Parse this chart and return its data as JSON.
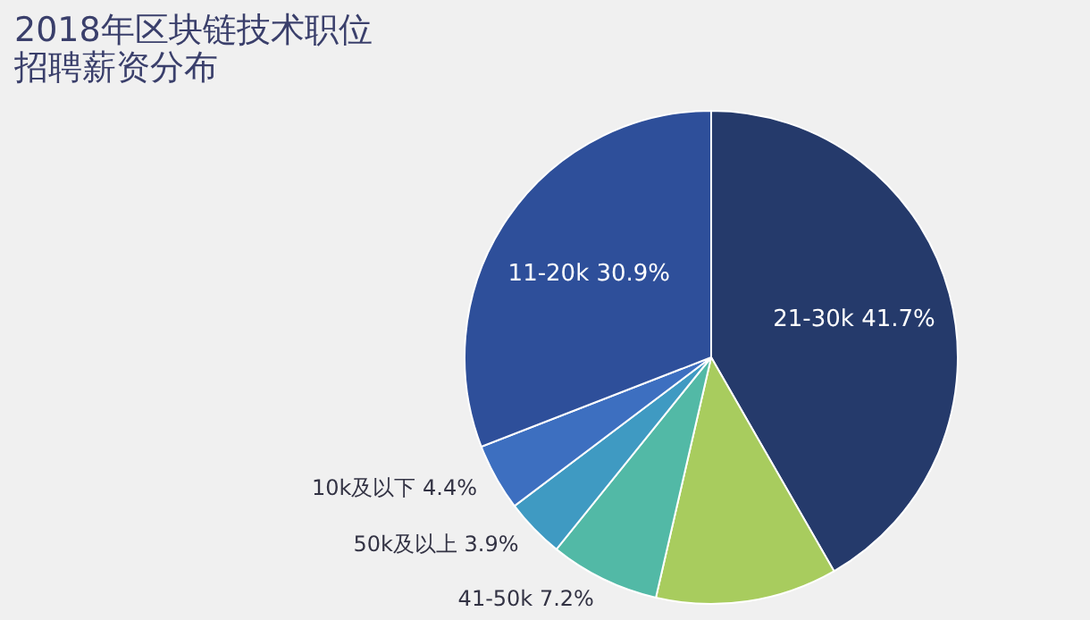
{
  "chart_data": {
    "type": "pie",
    "title": [
      "2018年区块链技术职位",
      "招聘薪资分布"
    ],
    "categories": [
      "21-30k",
      null,
      "41-50k",
      "50k及以上",
      "10k及以下",
      "11-20k"
    ],
    "values": [
      41.7,
      11.9,
      7.2,
      3.9,
      4.4,
      30.9
    ],
    "value_labels": [
      "41.7%",
      null,
      "7.2%",
      "3.9%",
      "4.4%",
      "30.9%"
    ],
    "colors": [
      "#253a6b",
      "#a8cc5e",
      "#52b9a6",
      "#3f9ac2",
      "#3d6fc0",
      "#2e4f9a"
    ]
  }
}
